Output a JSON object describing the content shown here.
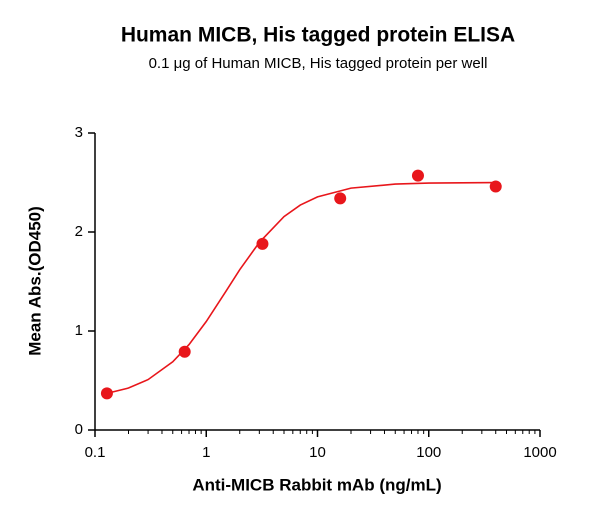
{
  "chart_data": {
    "type": "scatter",
    "title": "Human MICB, His tagged protein ELISA",
    "subtitle": "0.1 μg of Human MICB, His tagged protein per well",
    "x_label": "Anti-MICB Rabbit mAb (ng/mL)",
    "y_label": "Mean Abs.(OD450)",
    "x_scale": "log",
    "xlim": [
      0.1,
      1000
    ],
    "xticks": [
      0.1,
      1,
      10,
      100,
      1000
    ],
    "ylim": [
      0,
      3
    ],
    "yticks": [
      0,
      1,
      2,
      3
    ],
    "series": [
      {
        "style": "markers",
        "color": "#e8161b",
        "x": [
          0.128,
          0.64,
          3.2,
          16,
          80,
          400
        ],
        "values": [
          0.37,
          0.79,
          1.88,
          2.34,
          2.57,
          2.46
        ]
      },
      {
        "style": "line",
        "color": "#e8161b",
        "x": [
          0.128,
          0.2,
          0.3,
          0.5,
          0.7,
          1,
          1.5,
          2,
          3,
          5,
          7,
          10,
          20,
          50,
          100,
          400
        ],
        "values": [
          0.37,
          0.424,
          0.509,
          0.689,
          0.863,
          1.096,
          1.4,
          1.619,
          1.895,
          2.156,
          2.272,
          2.355,
          2.443,
          2.484,
          2.494,
          2.499
        ]
      }
    ]
  }
}
